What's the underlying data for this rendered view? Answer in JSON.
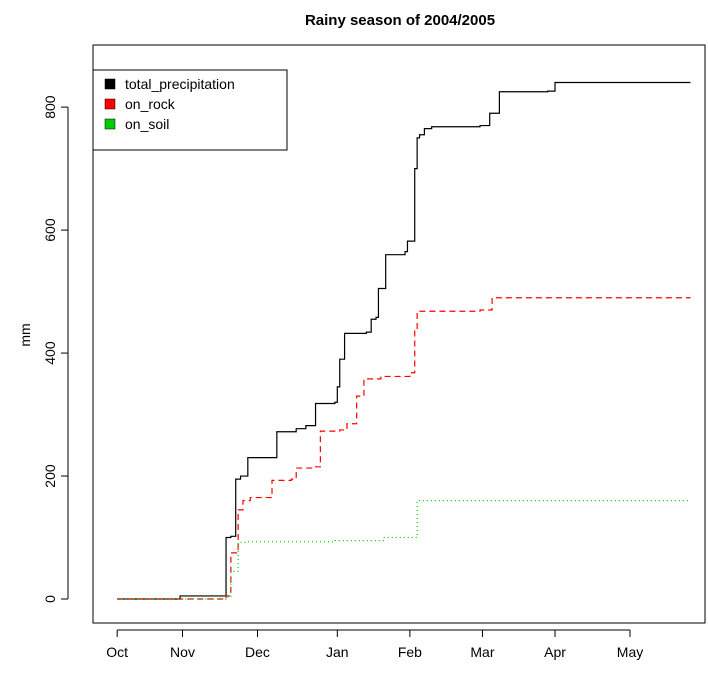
{
  "chart_data": {
    "type": "line",
    "title": "Rainy season of 2004/2005",
    "y_label": "mm",
    "step": true,
    "xlim": [
      -10,
      243
    ],
    "ylim": [
      -39,
      901
    ],
    "xticks": [
      {
        "value": 0,
        "label": "Oct"
      },
      {
        "value": 27,
        "label": "Nov"
      },
      {
        "value": 58,
        "label": "Dec"
      },
      {
        "value": 91,
        "label": "Jan"
      },
      {
        "value": 121,
        "label": "Feb"
      },
      {
        "value": 151,
        "label": "Mar"
      },
      {
        "value": 181,
        "label": "Apr"
      },
      {
        "value": 212,
        "label": "May"
      }
    ],
    "yticks": [
      0,
      200,
      400,
      600,
      800
    ],
    "legend": "top-left",
    "series": [
      {
        "name": "total_precipitation",
        "color": "#000000",
        "dash": "solid",
        "x": [
          0,
          26,
          45,
          47,
          49,
          51,
          54,
          66,
          74,
          78,
          82,
          90,
          91,
          92,
          94,
          103,
          105,
          107,
          108,
          111,
          119,
          120,
          123,
          124,
          125,
          127,
          130,
          150,
          154,
          158,
          178,
          181,
          237
        ],
        "values": [
          0,
          5,
          100,
          102,
          195,
          200,
          230,
          272,
          277,
          282,
          318,
          320,
          345,
          390,
          432,
          434,
          455,
          458,
          505,
          560,
          565,
          582,
          700,
          750,
          755,
          765,
          768,
          770,
          790,
          825,
          826,
          840,
          840
        ]
      },
      {
        "name": "on_rock",
        "color": "#ff0000",
        "dash": "dashed",
        "x": [
          0,
          45,
          47,
          50,
          52,
          55,
          64,
          72,
          74,
          81,
          84,
          92,
          95,
          99,
          102,
          109,
          121,
          123,
          124,
          150,
          155,
          237
        ],
        "values": [
          0,
          5,
          75,
          145,
          160,
          165,
          193,
          195,
          213,
          215,
          273,
          275,
          285,
          330,
          358,
          362,
          368,
          440,
          468,
          470,
          490,
          490
        ]
      },
      {
        "name": "on_soil",
        "color": "#00cd00",
        "dash": "dotted",
        "x": [
          0,
          45,
          47,
          50,
          54,
          90,
          110,
          122,
          124,
          237
        ],
        "values": [
          0,
          3,
          45,
          92,
          93,
          95,
          100,
          100,
          160,
          160
        ]
      }
    ]
  }
}
